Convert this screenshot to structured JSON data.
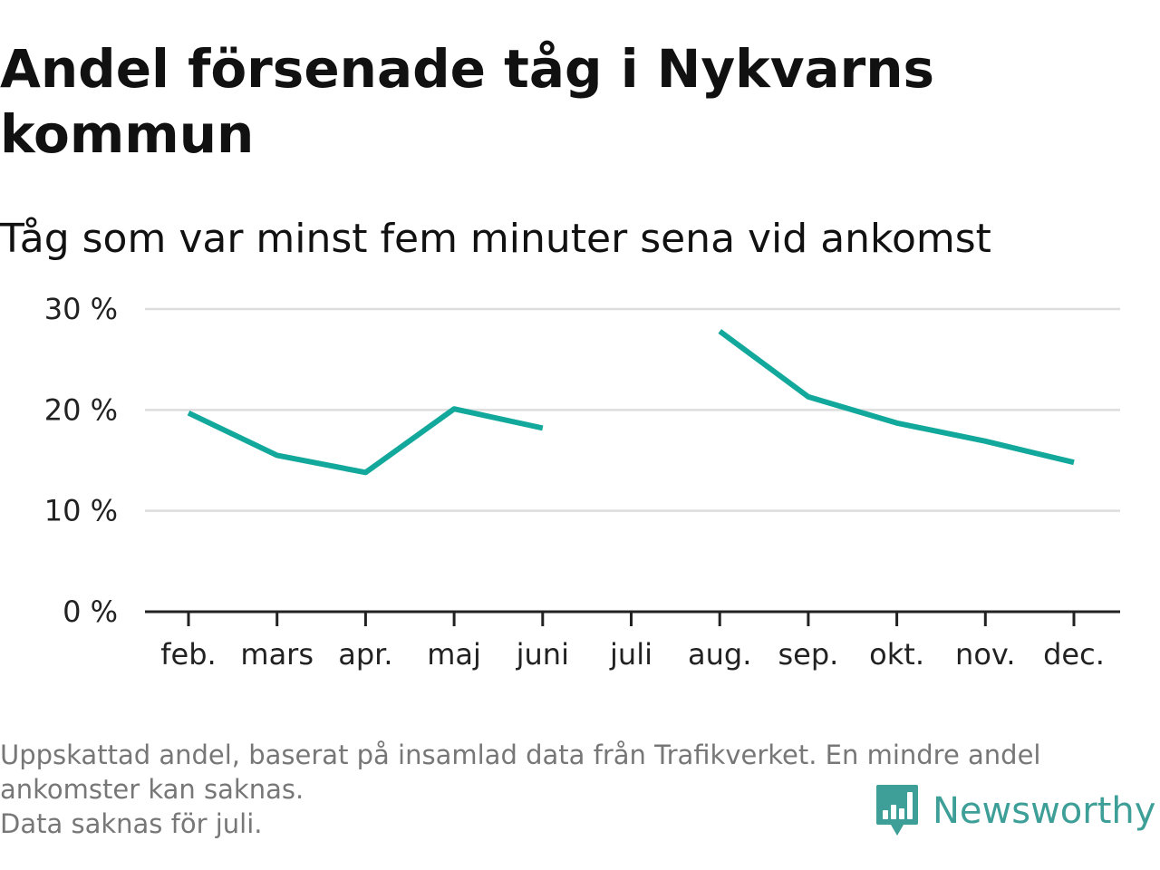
{
  "header": {
    "title": "Andel försenade tåg i Nykvarns kommun",
    "subtitle": "Tåg som var minst fem minuter sena vid ankomst"
  },
  "colors": {
    "line": "#12a89b",
    "grid": "#dddddd",
    "axis": "#222222",
    "brand": "#3d9f97"
  },
  "chart_data": {
    "type": "line",
    "title": "Andel försenade tåg i Nykvarns kommun",
    "subtitle": "Tåg som var minst fem minuter sena vid ankomst",
    "xlabel": "",
    "ylabel": "",
    "categories": [
      "feb.",
      "mars",
      "apr.",
      "maj",
      "juni",
      "juli",
      "aug.",
      "sep.",
      "okt.",
      "nov.",
      "dec."
    ],
    "series": [
      {
        "values": [
          19.7,
          15.5,
          13.8,
          20.1,
          18.2,
          null,
          27.8,
          21.3,
          18.7,
          16.9,
          14.8
        ]
      }
    ],
    "ylim": [
      0,
      30
    ],
    "yticks": [
      0,
      10,
      20,
      30
    ],
    "ytick_labels": [
      "0 %",
      "10 %",
      "20 %",
      "30 %"
    ],
    "grid": true,
    "legend": "none"
  },
  "footer": {
    "note_line1": "Uppskattad andel, baserat på insamlad data från Trafikverket. En mindre andel",
    "note_line2": "ankomster kan saknas.",
    "note_line3": "Data saknas för juli.",
    "brand_name": "Newsworthy",
    "brand_icon": "newsworthy-chart-bubble-icon"
  }
}
